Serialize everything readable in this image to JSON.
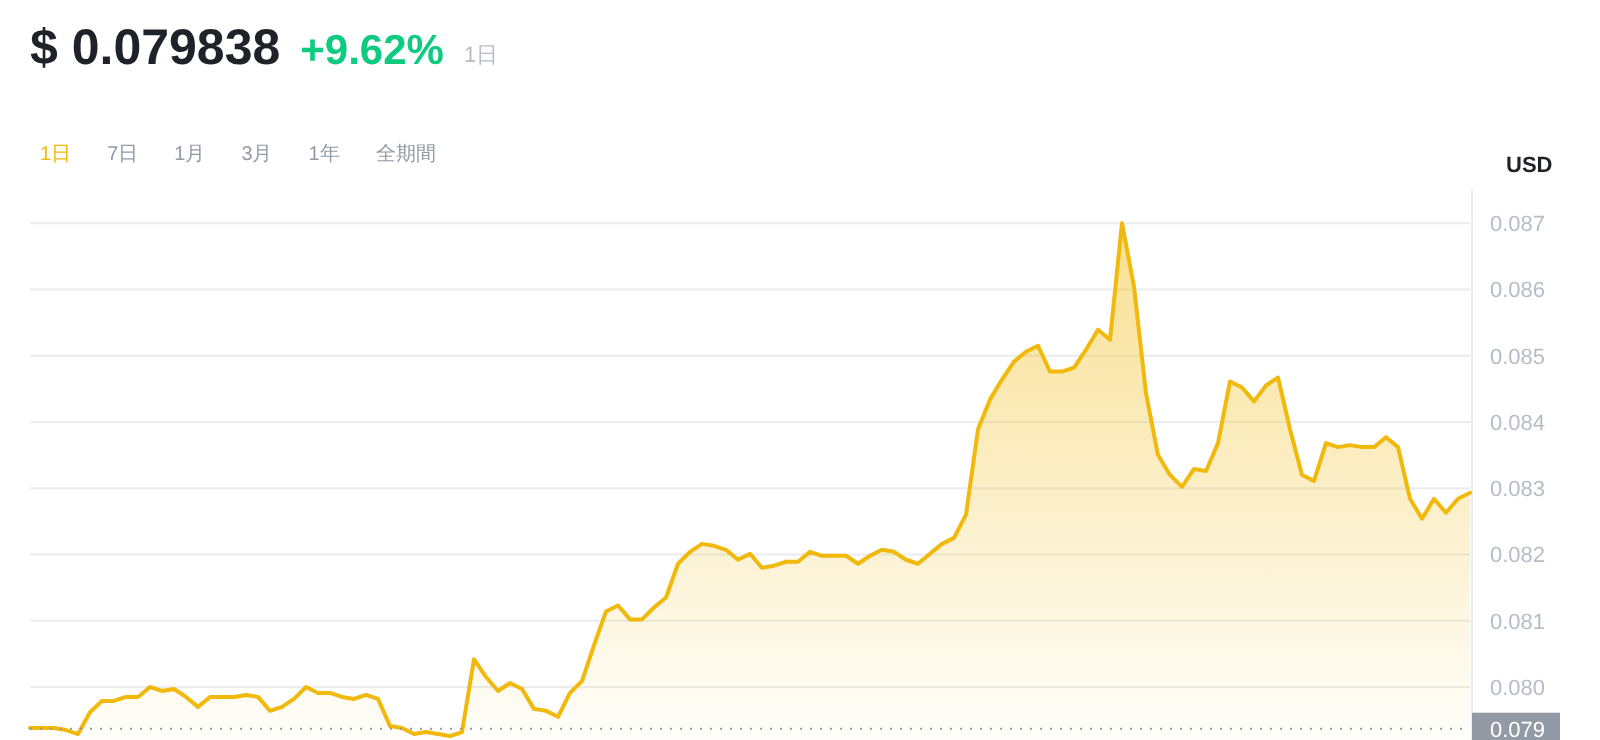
{
  "chart_data": {
    "type": "area",
    "title": "$ 0.079838",
    "subtitle": "+9.62%",
    "ylabel": "USD",
    "annotations": [
      "1日",
      "1日",
      "7日",
      "1月",
      "3月",
      "1年",
      "全期間"
    ],
    "categories": [
      null,
      null,
      null,
      null,
      null,
      null,
      null,
      null,
      null,
      null,
      null,
      null,
      null,
      null,
      null,
      null,
      null,
      null,
      null,
      null,
      null,
      null,
      null,
      null,
      null,
      null,
      null,
      null,
      null,
      null,
      null,
      null,
      null,
      null,
      null,
      null,
      null,
      null,
      null,
      null,
      null,
      null,
      null,
      null,
      null,
      null,
      null,
      null,
      null,
      null,
      null,
      null,
      null,
      null,
      null,
      null,
      null,
      null,
      null,
      null,
      null,
      null,
      null,
      null,
      null,
      null,
      null,
      null,
      null,
      null,
      null,
      null,
      null,
      null,
      null,
      null,
      null,
      null,
      null,
      null,
      null,
      null,
      null,
      null,
      null,
      null,
      null,
      null,
      null,
      null,
      null,
      null,
      null,
      null,
      null,
      null,
      null,
      null,
      null,
      null,
      null,
      null,
      null,
      null,
      null,
      null,
      null,
      null,
      null,
      null,
      null,
      null,
      null,
      null,
      null,
      null,
      null,
      null,
      null,
      null,
      null
    ],
    "series": [
      {
        "color": "#f0b90b",
        "values": [
          0.07938,
          0.07938,
          0.07938,
          0.07935,
          0.07929,
          0.07962,
          0.07979,
          0.07979,
          0.07985,
          0.07985,
          0.08,
          0.07994,
          0.07997,
          0.07985,
          0.0797,
          0.07985,
          0.07985,
          0.07985,
          0.07988,
          0.07985,
          0.07964,
          0.0797,
          0.07982,
          0.08,
          0.07991,
          0.07991,
          0.07985,
          0.07982,
          0.07988,
          0.07982,
          0.07941,
          0.07938,
          0.07929,
          0.07932,
          0.07929,
          0.07926,
          0.07932,
          0.08042,
          0.08015,
          0.07994,
          0.08006,
          0.07997,
          0.07967,
          0.07964,
          0.07955,
          0.07991,
          0.08009,
          0.08063,
          0.08114,
          0.08123,
          0.08102,
          0.08102,
          0.0812,
          0.08135,
          0.08186,
          0.08204,
          0.08216,
          0.08213,
          0.08207,
          0.08192,
          0.08201,
          0.0818,
          0.08183,
          0.08189,
          0.08189,
          0.08204,
          0.08198,
          0.08198,
          0.08198,
          0.08186,
          0.08198,
          0.08207,
          0.08204,
          0.08192,
          0.08186,
          0.08201,
          0.08216,
          0.08225,
          0.0826,
          0.08389,
          0.08434,
          0.08464,
          0.08491,
          0.08506,
          0.08515,
          0.08476,
          0.08476,
          0.08482,
          0.08509,
          0.08539,
          0.08524,
          0.087,
          0.08604,
          0.08443,
          0.0835,
          0.0832,
          0.08302,
          0.08329,
          0.08326,
          0.08368,
          0.08461,
          0.08452,
          0.08431,
          0.08455,
          0.08467,
          0.08389,
          0.0832,
          0.08311,
          0.08368,
          0.08362,
          0.08365,
          0.08362,
          0.08362,
          0.08377,
          0.08362,
          0.08284,
          0.08254,
          0.08284,
          0.08263,
          0.08284,
          0.08293
        ]
      }
    ],
    "ylim": [
      0.0792,
      0.0875
    ],
    "yticks": [
      {
        "value": 0.08,
        "label": "0.080"
      },
      {
        "value": 0.081,
        "label": "0.081"
      },
      {
        "value": 0.082,
        "label": "0.082"
      },
      {
        "value": 0.083,
        "label": "0.083"
      },
      {
        "value": 0.084,
        "label": "0.084"
      },
      {
        "value": 0.085,
        "label": "0.085"
      },
      {
        "value": 0.086,
        "label": "0.086"
      },
      {
        "value": 0.087,
        "label": "0.087"
      }
    ],
    "grid": "y",
    "tick_labels": "y",
    "ref_lines": [
      {
        "axis": "y",
        "value": 0.07937,
        "label": "0.079",
        "color": "#929aa5",
        "line_style": "dotted"
      }
    ]
  }
}
